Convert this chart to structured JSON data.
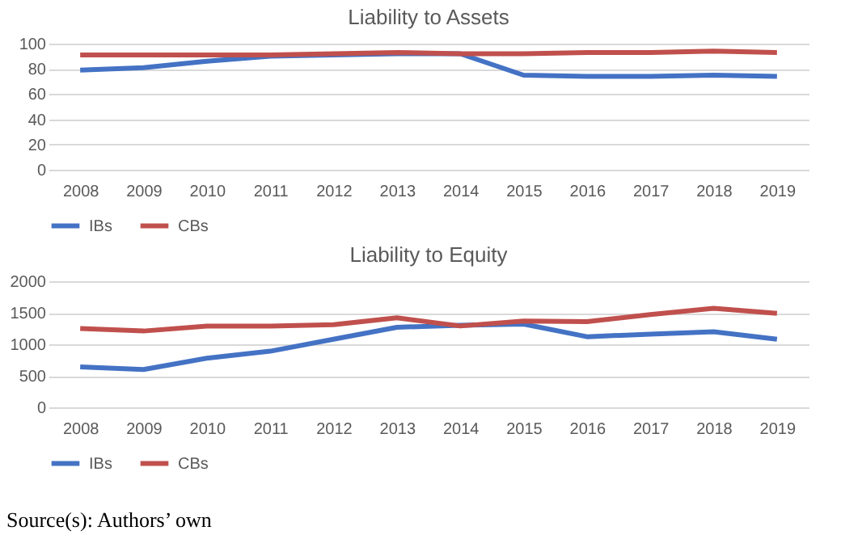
{
  "chart_data": [
    {
      "type": "line",
      "title": "Liability to Assets",
      "categories": [
        "2008",
        "2009",
        "2010",
        "2011",
        "2012",
        "2013",
        "2014",
        "2015",
        "2016",
        "2017",
        "2018",
        "2019"
      ],
      "series": [
        {
          "name": "IBs",
          "color": "#4472c4",
          "values": [
            79,
            81,
            86,
            90,
            91,
            92,
            92,
            75,
            74,
            74,
            75,
            74
          ]
        },
        {
          "name": "CBs",
          "color": "#c0504d",
          "values": [
            91,
            91,
            91,
            91,
            92,
            93,
            92,
            92,
            93,
            93,
            94,
            93
          ]
        }
      ],
      "ylim": [
        0,
        100
      ],
      "yticks": [
        0,
        20,
        40,
        60,
        80,
        100
      ],
      "grid": "y",
      "legend": "bottom",
      "marker": "none",
      "line_style": "solid"
    },
    {
      "type": "line",
      "title": "Liability to Equity",
      "categories": [
        "2008",
        "2009",
        "2010",
        "2011",
        "2012",
        "2013",
        "2014",
        "2015",
        "2016",
        "2017",
        "2018",
        "2019"
      ],
      "series": [
        {
          "name": "IBs",
          "color": "#4472c4",
          "values": [
            640,
            600,
            780,
            890,
            1080,
            1270,
            1300,
            1320,
            1120,
            1160,
            1200,
            1080
          ]
        },
        {
          "name": "CBs",
          "color": "#c0504d",
          "values": [
            1250,
            1210,
            1290,
            1290,
            1310,
            1420,
            1290,
            1370,
            1360,
            1470,
            1570,
            1490
          ]
        }
      ],
      "ylim": [
        0,
        2000
      ],
      "yticks": [
        0,
        500,
        1000,
        1500,
        2000
      ],
      "grid": "y",
      "legend": "bottom",
      "marker": "none",
      "line_style": "solid",
      "annotations": [
        "Source(s): Authors’ own"
      ]
    }
  ]
}
